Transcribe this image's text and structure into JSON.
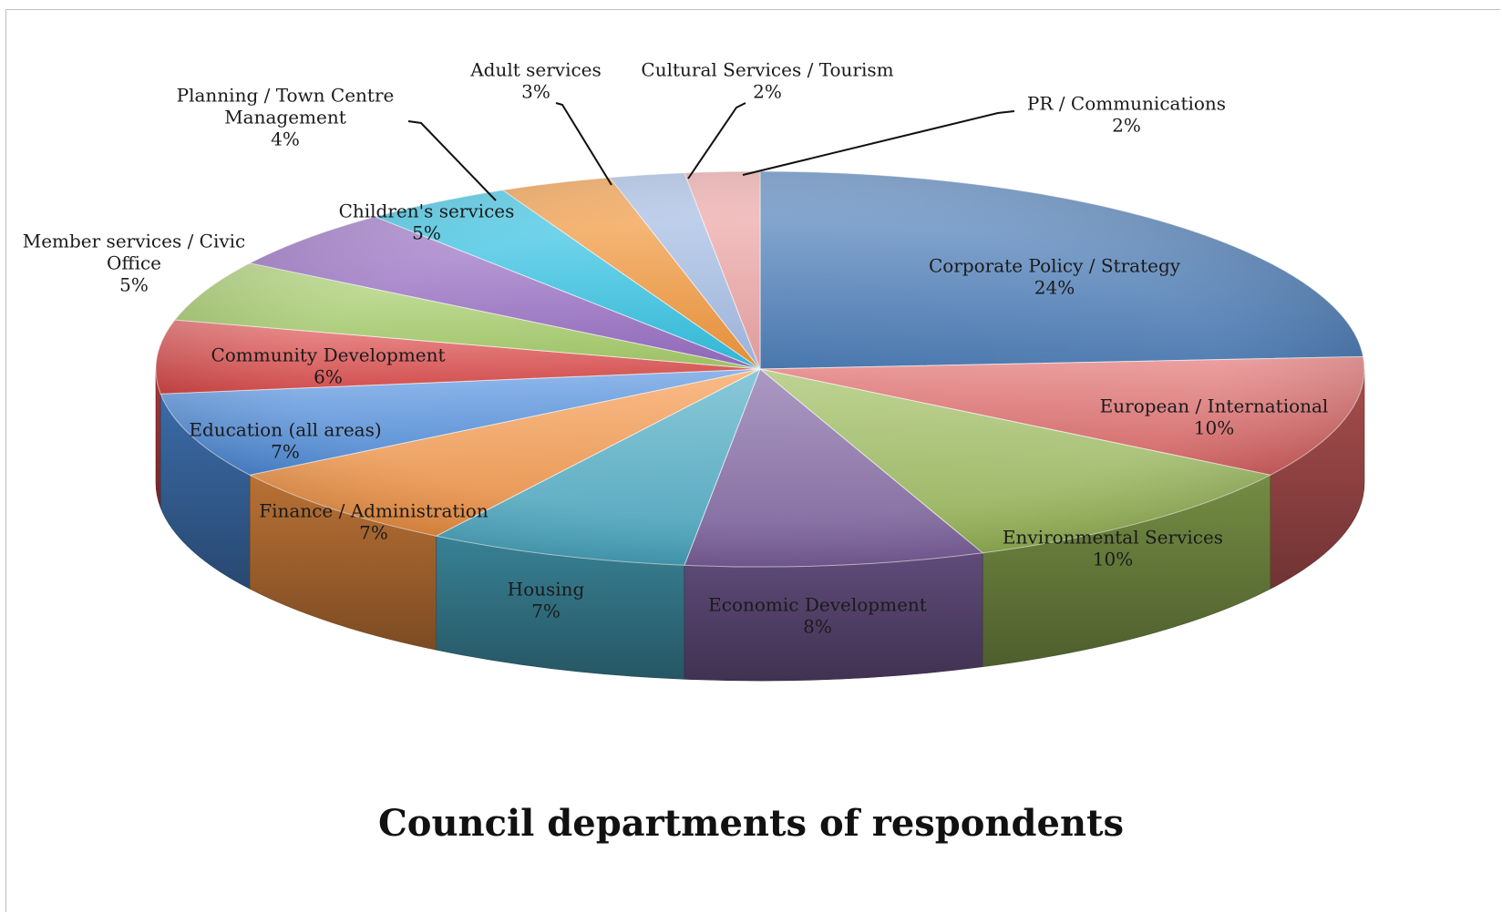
{
  "chart_data": {
    "type": "pie",
    "title": "Council departments of respondents",
    "three_d": true,
    "slices": [
      {
        "name": "Corporate Policy / Strategy",
        "lines": [
          "Corporate Policy / Strategy"
        ],
        "value": 24,
        "label": "24%",
        "color": "#4f81bd"
      },
      {
        "name": "European / International",
        "lines": [
          "European / International"
        ],
        "value": 10,
        "label": "10%",
        "color": "#e06666"
      },
      {
        "name": "Environmental Services",
        "lines": [
          "Environmental Services"
        ],
        "value": 10,
        "label": "10%",
        "color": "#9bbb59"
      },
      {
        "name": "Economic Development",
        "lines": [
          "Economic Development"
        ],
        "value": 8,
        "label": "8%",
        "color": "#8064a2"
      },
      {
        "name": "Housing",
        "lines": [
          "Housing"
        ],
        "value": 7,
        "label": "7%",
        "color": "#4bacc6"
      },
      {
        "name": "Finance / Administration",
        "lines": [
          "Finance / Administration"
        ],
        "value": 7,
        "label": "7%",
        "color": "#f79646"
      },
      {
        "name": "Education (all areas)",
        "lines": [
          "Education (all areas)"
        ],
        "value": 7,
        "label": "7%",
        "color": "#4f8fe0"
      },
      {
        "name": "Community Development",
        "lines": [
          "Community Development"
        ],
        "value": 6,
        "label": "6%",
        "color": "#e04b4b"
      },
      {
        "name": "Member services / Civic Office",
        "lines": [
          "Member services / Civic",
          "Office"
        ],
        "value": 5,
        "label": "5%",
        "color": "#a9d16b"
      },
      {
        "name": "Children's services",
        "lines": [
          "Children's services"
        ],
        "value": 5,
        "label": "5%",
        "color": "#9a6fc7"
      },
      {
        "name": "Planning / Town Centre Management",
        "lines": [
          "Planning / Town Centre",
          "Management"
        ],
        "value": 4,
        "label": "4%",
        "color": "#33c6e8"
      },
      {
        "name": "Adult services",
        "lines": [
          "Adult services"
        ],
        "value": 3,
        "label": "3%",
        "color": "#f79a3c"
      },
      {
        "name": "Cultural Services / Tourism",
        "lines": [
          "Cultural Services / Tourism"
        ],
        "value": 2,
        "label": "2%",
        "color": "#a7c0ea"
      },
      {
        "name": "PR / Communications",
        "lines": [
          "PR / Communications"
        ],
        "value": 2,
        "label": "2%",
        "color": "#f2a8a8"
      }
    ]
  }
}
